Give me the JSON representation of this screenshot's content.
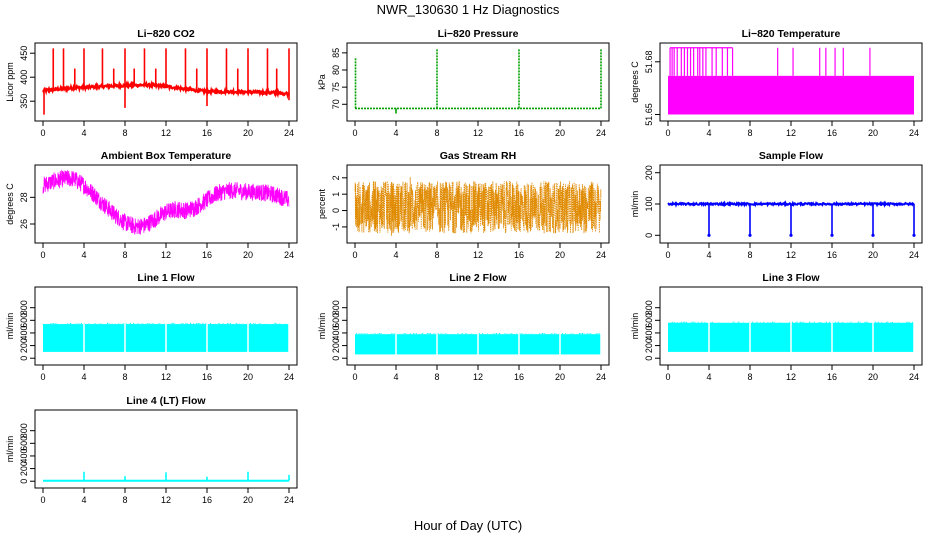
{
  "page": {
    "title": "NWR_130630  1 Hz Diagnostics",
    "xlabel": "Hour of Day (UTC)"
  },
  "chart_data": [
    {
      "id": "co2",
      "type": "line",
      "title": "Li−820 CO2",
      "ylabel": "Licor ppm",
      "color": "#ff0000",
      "xlim": [
        0,
        24
      ],
      "ylim": [
        315,
        465
      ],
      "xticks": [
        0,
        4,
        8,
        12,
        16,
        20,
        24
      ],
      "yticks": [
        350,
        400,
        450
      ],
      "baseline": [
        [
          0,
          372
        ],
        [
          2,
          376
        ],
        [
          4,
          379
        ],
        [
          6,
          381
        ],
        [
          8,
          383
        ],
        [
          10,
          384
        ],
        [
          12,
          381
        ],
        [
          14,
          375
        ],
        [
          16,
          370
        ],
        [
          18,
          370
        ],
        [
          20,
          369
        ],
        [
          22,
          368
        ],
        [
          24,
          366
        ]
      ],
      "spikes": [
        [
          1.0,
          460
        ],
        [
          2.0,
          460
        ],
        [
          3.1,
          418
        ],
        [
          4.0,
          460
        ],
        [
          5.8,
          460
        ],
        [
          6.9,
          418
        ],
        [
          8.0,
          460
        ],
        [
          8.9,
          418
        ],
        [
          9.9,
          460
        ],
        [
          11.0,
          418
        ],
        [
          12.0,
          460
        ],
        [
          13.9,
          460
        ],
        [
          15.0,
          418
        ],
        [
          16.0,
          460
        ],
        [
          17.9,
          460
        ],
        [
          19.0,
          418
        ],
        [
          20.0,
          460
        ],
        [
          21.9,
          460
        ],
        [
          22.8,
          418
        ],
        [
          24.0,
          460
        ]
      ],
      "dips": [
        [
          0.1,
          322
        ],
        [
          8.0,
          336
        ],
        [
          16.0,
          340
        ],
        [
          24.0,
          352
        ]
      ]
    },
    {
      "id": "pressure",
      "type": "line",
      "title": "Li−820 Pressure",
      "ylabel": "kPa",
      "color": "#00a000",
      "xlim": [
        0,
        24
      ],
      "ylim": [
        66,
        87
      ],
      "xticks": [
        0,
        4,
        8,
        12,
        16,
        20,
        24
      ],
      "yticks": [
        70,
        75,
        80,
        85
      ],
      "baseline": [
        [
          0,
          68.8
        ],
        [
          24,
          68.8
        ]
      ],
      "spikes": [
        [
          0.05,
          83.5
        ],
        [
          8.0,
          86
        ],
        [
          16.0,
          86
        ],
        [
          24.0,
          86
        ]
      ],
      "dips": [
        [
          4.0,
          67.3
        ]
      ]
    },
    {
      "id": "licor_temp",
      "type": "line",
      "title": "Li−820 Temperature",
      "ylabel": "degrees C",
      "color": "#ff00ff",
      "xlim": [
        0,
        24
      ],
      "ylim": [
        51.648,
        51.689
      ],
      "xticks": [
        0,
        4,
        8,
        12,
        16,
        20,
        24
      ],
      "yticks": [
        51.65,
        51.68
      ],
      "levels": [
        51.65,
        51.672
      ],
      "spikes": [
        [
          0.2,
          51.688
        ],
        [
          0.4,
          51.688
        ],
        [
          0.6,
          51.688
        ],
        [
          0.9,
          51.688
        ],
        [
          1.3,
          51.688
        ],
        [
          1.6,
          51.688
        ],
        [
          1.9,
          51.688
        ],
        [
          2.2,
          51.688
        ],
        [
          2.5,
          51.688
        ],
        [
          2.9,
          51.688
        ],
        [
          3.1,
          51.688
        ],
        [
          3.4,
          51.688
        ],
        [
          3.7,
          51.688
        ],
        [
          4.3,
          51.688
        ],
        [
          4.7,
          51.688
        ],
        [
          5.3,
          51.688
        ],
        [
          5.8,
          51.688
        ],
        [
          6.3,
          51.688
        ],
        [
          10.7,
          51.688
        ],
        [
          12.2,
          51.688
        ],
        [
          14.8,
          51.688
        ],
        [
          15.4,
          51.688
        ],
        [
          16.3,
          51.688
        ],
        [
          17.1,
          51.688
        ],
        [
          19.7,
          51.688
        ]
      ]
    },
    {
      "id": "box_temp",
      "type": "line",
      "title": "Ambient Box Temperature",
      "ylabel": "degrees C",
      "color": "#ff00ff",
      "xlim": [
        0,
        24
      ],
      "ylim": [
        24.8,
        30.2
      ],
      "xticks": [
        0,
        4,
        8,
        12,
        16,
        20,
        24
      ],
      "yticks": [
        26,
        28
      ],
      "center": [
        [
          0,
          28.9
        ],
        [
          1,
          29.2
        ],
        [
          2,
          29.4
        ],
        [
          3,
          29.4
        ],
        [
          4,
          28.9
        ],
        [
          5,
          28.2
        ],
        [
          6,
          27.4
        ],
        [
          7,
          26.7
        ],
        [
          8,
          26.1
        ],
        [
          9,
          25.8
        ],
        [
          10,
          25.9
        ],
        [
          11,
          26.4
        ],
        [
          12,
          26.9
        ],
        [
          13,
          27.1
        ],
        [
          14,
          27.0
        ],
        [
          15,
          27.3
        ],
        [
          16,
          27.8
        ],
        [
          17,
          28.3
        ],
        [
          18,
          28.5
        ],
        [
          19,
          28.5
        ],
        [
          20,
          28.4
        ],
        [
          21,
          28.4
        ],
        [
          22,
          28.3
        ],
        [
          23,
          28.1
        ],
        [
          24,
          27.8
        ]
      ],
      "band": 0.65
    },
    {
      "id": "rh",
      "type": "line",
      "title": "Gas Stream RH",
      "ylabel": "percent",
      "color": "#e08a00",
      "xlim": [
        0,
        24
      ],
      "ylim": [
        -1.8,
        2.6
      ],
      "xticks": [
        0,
        4,
        8,
        12,
        16,
        20,
        24
      ],
      "yticks": [
        -1,
        0,
        1,
        2
      ],
      "low": -1.4,
      "high": 1.8
    },
    {
      "id": "sample_flow",
      "type": "line",
      "title": "Sample Flow",
      "ylabel": "ml/min",
      "color": "#0000ff",
      "xlim": [
        0,
        24
      ],
      "ylim": [
        -15,
        215
      ],
      "xticks": [
        0,
        4,
        8,
        12,
        16,
        20,
        24
      ],
      "yticks": [
        0,
        100,
        200
      ],
      "baseline": [
        [
          0,
          100
        ],
        [
          24,
          100
        ]
      ],
      "dips": [
        [
          4.0,
          0
        ],
        [
          8.0,
          0
        ],
        [
          12.0,
          0
        ],
        [
          16.0,
          0
        ],
        [
          20.0,
          0
        ],
        [
          24.0,
          0
        ]
      ]
    },
    {
      "id": "line1",
      "type": "line",
      "title": "Line 1 Flow",
      "ylabel": "ml/min",
      "color": "#00ffff",
      "xlim": [
        0,
        24
      ],
      "ylim": [
        -60,
        1080
      ],
      "xticks": [
        0,
        4,
        8,
        12,
        16,
        20,
        24
      ],
      "yticks": [
        0,
        200,
        400,
        600,
        800
      ],
      "low": 100,
      "high": 540,
      "gaps": [
        4,
        8,
        12,
        16,
        20,
        24
      ]
    },
    {
      "id": "line2",
      "type": "line",
      "title": "Line 2 Flow",
      "ylabel": "ml/min",
      "color": "#00ffff",
      "xlim": [
        0,
        24
      ],
      "ylim": [
        -60,
        1080
      ],
      "xticks": [
        0,
        4,
        8,
        12,
        16,
        20,
        24
      ],
      "yticks": [
        0,
        200,
        400,
        600,
        800
      ],
      "low": 60,
      "high": 380,
      "gaps": [
        4,
        8,
        12,
        16,
        20,
        24
      ]
    },
    {
      "id": "line3",
      "type": "line",
      "title": "Line 3 Flow",
      "ylabel": "ml/min",
      "color": "#00ffff",
      "xlim": [
        0,
        24
      ],
      "ylim": [
        -60,
        1080
      ],
      "xticks": [
        0,
        4,
        8,
        12,
        16,
        20,
        24
      ],
      "yticks": [
        0,
        200,
        400,
        600,
        800
      ],
      "low": 100,
      "high": 560,
      "gaps": [
        4,
        8,
        12,
        16,
        20,
        24
      ]
    },
    {
      "id": "line4",
      "type": "line",
      "title": "Line 4 (LT) Flow",
      "ylabel": "ml/min",
      "color": "#00ffff",
      "xlim": [
        0,
        24
      ],
      "ylim": [
        -60,
        1080
      ],
      "xticks": [
        0,
        4,
        8,
        12,
        16,
        20,
        24
      ],
      "yticks": [
        0,
        200,
        400,
        600,
        800
      ],
      "baseline": [
        [
          0,
          8
        ],
        [
          24,
          8
        ]
      ],
      "spikes": [
        [
          4.0,
          150
        ],
        [
          8.0,
          80
        ],
        [
          12.0,
          140
        ],
        [
          16.0,
          70
        ],
        [
          20.0,
          150
        ],
        [
          24.0,
          100
        ]
      ]
    }
  ]
}
